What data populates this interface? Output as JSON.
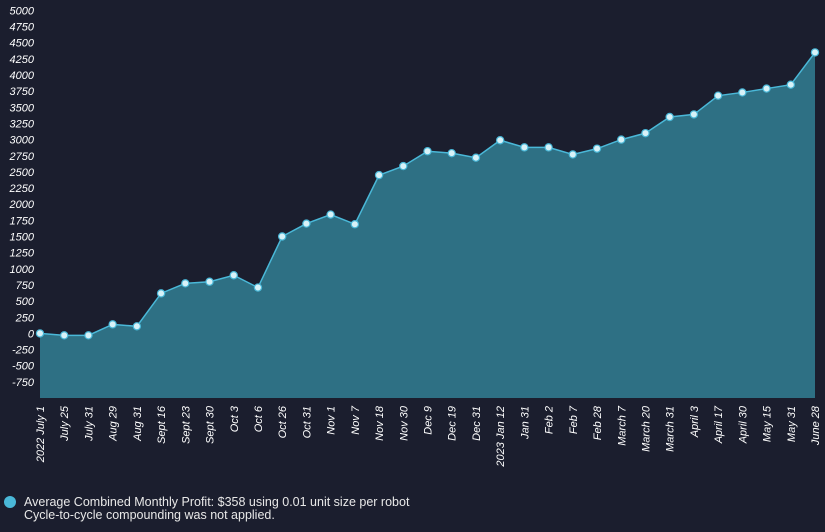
{
  "chart_data": {
    "type": "area",
    "categories": [
      "2022 July 1",
      "July 25",
      "July 31",
      "Aug 29",
      "Aug 31",
      "Sept 16",
      "Sept 23",
      "Sept 30",
      "Oct 3",
      "Oct 6",
      "Oct 26",
      "Oct 31",
      "Nov 1",
      "Nov 7",
      "Nov 18",
      "Nov 30",
      "Dec 9",
      "Dec 19",
      "Dec 31",
      "2023 Jan 12",
      "Jan 31",
      "Feb 2",
      "Feb 7",
      "Feb 28",
      "March 7",
      "March 20",
      "March 31",
      "April 3",
      "April 17",
      "April 30",
      "May 15",
      "May 31",
      "June 28"
    ],
    "series": [
      {
        "name": "Average Combined Monthly Profit: $358 using 0.01 unit size per robot",
        "color": "#4ab8d8",
        "values": [
          0,
          -30,
          -30,
          140,
          110,
          620,
          775,
          800,
          900,
          710,
          1500,
          1700,
          1840,
          1690,
          2450,
          2590,
          2820,
          2790,
          2720,
          2990,
          2880,
          2880,
          2770,
          2860,
          3000,
          3100,
          3350,
          3390,
          3680,
          3730,
          3790,
          3850,
          4350
        ]
      }
    ],
    "note": "Cycle-to-cycle compounding was not applied.",
    "ylim": [
      -1000,
      5000
    ],
    "yticks": [
      -750,
      -500,
      -250,
      0,
      250,
      500,
      750,
      1000,
      1250,
      1500,
      1750,
      2000,
      2250,
      2500,
      2750,
      3000,
      3250,
      3500,
      3750,
      4000,
      4250,
      4500,
      4750,
      5000
    ]
  }
}
